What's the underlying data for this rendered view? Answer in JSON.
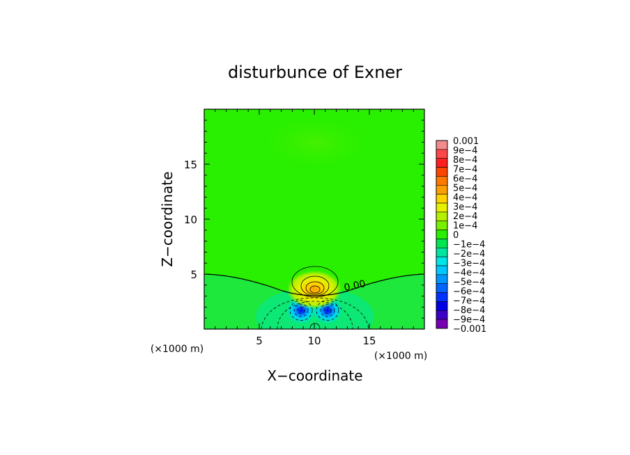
{
  "chart_data": {
    "type": "contour",
    "title": "disturbunce of Exner",
    "xlabel": "X−coordinate",
    "ylabel": "Z−coordinate",
    "x_unit_label": "(×1000 m)",
    "y_unit_label": "(×1000 m)",
    "xlim": [
      0,
      20
    ],
    "ylim": [
      0,
      20
    ],
    "x_ticks": [
      5,
      10,
      15
    ],
    "y_ticks": [
      5,
      10,
      15
    ],
    "contour_label": "0.00",
    "colorbar": {
      "min": -0.001,
      "max": 0.001,
      "levels": [
        {
          "label": "0.001",
          "value": 0.001,
          "color": "#f28c8c"
        },
        {
          "label": "9e−4",
          "value": 0.0009,
          "color": "#ff4646"
        },
        {
          "label": "8e−4",
          "value": 0.0008,
          "color": "#ff1e1e"
        },
        {
          "label": "7e−4",
          "value": 0.0007,
          "color": "#ff4600"
        },
        {
          "label": "6e−4",
          "value": 0.0006,
          "color": "#ff7800"
        },
        {
          "label": "5e−4",
          "value": 0.0005,
          "color": "#ffa000"
        },
        {
          "label": "4e−4",
          "value": 0.0004,
          "color": "#ffd200"
        },
        {
          "label": "3e−4",
          "value": 0.0003,
          "color": "#e6f000"
        },
        {
          "label": "2e−4",
          "value": 0.0002,
          "color": "#b4f000"
        },
        {
          "label": "1e−4",
          "value": 0.0001,
          "color": "#78f000"
        },
        {
          "label": "0",
          "value": 0,
          "color": "#28f000"
        },
        {
          "label": "−1e−4",
          "value": -0.0001,
          "color": "#00e650"
        },
        {
          "label": "−2e−4",
          "value": -0.0002,
          "color": "#00e6a0"
        },
        {
          "label": "−3e−4",
          "value": -0.0003,
          "color": "#00e6e6"
        },
        {
          "label": "−4e−4",
          "value": -0.0004,
          "color": "#00c8ff"
        },
        {
          "label": "−5e−4",
          "value": -0.0005,
          "color": "#0096ff"
        },
        {
          "label": "−6e−4",
          "value": -0.0006,
          "color": "#0064ff"
        },
        {
          "label": "−7e−4",
          "value": -0.0007,
          "color": "#0032ff"
        },
        {
          "label": "−8e−4",
          "value": -0.0008,
          "color": "#0000e6"
        },
        {
          "label": "−9e−4",
          "value": -0.0009,
          "color": "#3c00c8"
        },
        {
          "label": "−0.001",
          "value": -0.001,
          "color": "#7800b4"
        }
      ]
    },
    "features": [
      {
        "kind": "positive-max",
        "x": 10.0,
        "z": 3.6,
        "value": 0.0005
      },
      {
        "kind": "negative-min",
        "x": 8.8,
        "z": 1.7,
        "value": -0.0008
      },
      {
        "kind": "negative-min",
        "x": 11.2,
        "z": 1.7,
        "value": -0.0008
      }
    ]
  }
}
